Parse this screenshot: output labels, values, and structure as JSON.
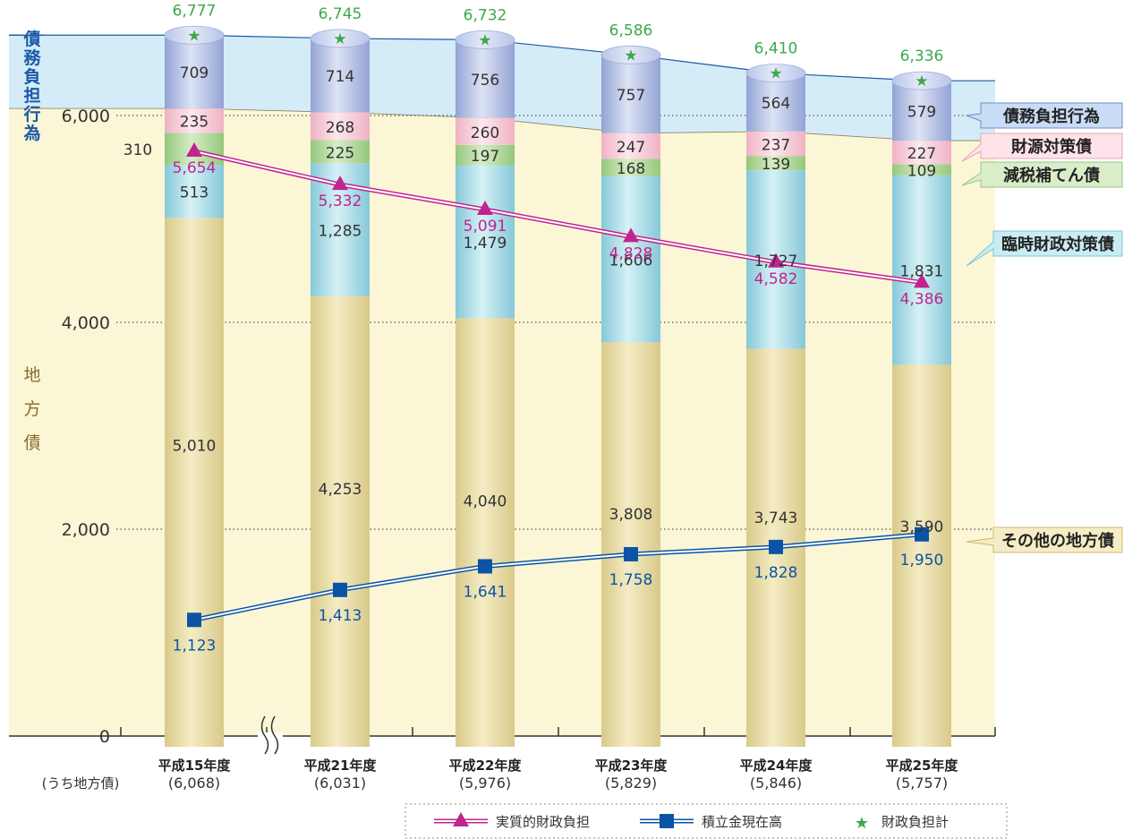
{
  "chart_data": {
    "type": "bar",
    "y_ticks": [
      "0",
      "2,000",
      "4,000",
      "6,000"
    ],
    "ylim": [
      0,
      7200
    ],
    "grid": "dotted",
    "side_label_top": "債務負担行為",
    "side_label_main": [
      "地",
      "方",
      "債"
    ],
    "categories": [
      "平成15年度",
      "平成21年度",
      "平成22年度",
      "平成23年度",
      "平成24年度",
      "平成25年度"
    ],
    "category_sub": [
      "(6,068)",
      "(6,031)",
      "(5,976)",
      "(5,829)",
      "(5,846)",
      "(5,757)"
    ],
    "sub_row_label": "(うち地方債)",
    "series": [
      {
        "name": "その他の地方債",
        "values": [
          5010,
          4253,
          4040,
          3808,
          3743,
          3590
        ],
        "labels": [
          "5,010",
          "4,253",
          "4,040",
          "3,808",
          "3,743",
          "3,590"
        ],
        "color": "#e8dca0"
      },
      {
        "name": "臨時財政対策債",
        "values": [
          513,
          1285,
          1479,
          1606,
          1727,
          1831
        ],
        "labels": [
          "513",
          "1,285",
          "1,479",
          "1,606",
          "1,727",
          "1,831"
        ],
        "color": "#a6dbe6"
      },
      {
        "name": "減税補てん債",
        "values": [
          310,
          225,
          197,
          168,
          139,
          109
        ],
        "labels": [
          "310",
          "225",
          "197",
          "168",
          "139",
          "109"
        ],
        "color": "#b9dba0"
      },
      {
        "name": "財源対策債",
        "values": [
          235,
          268,
          260,
          247,
          237,
          227
        ],
        "labels": [
          "235",
          "268",
          "260",
          "247",
          "237",
          "227"
        ],
        "color": "#f8cdd8"
      },
      {
        "name": "債務負担行為",
        "values": [
          709,
          714,
          756,
          757,
          564,
          579
        ],
        "labels": [
          "709",
          "714",
          "756",
          "757",
          "564",
          "579"
        ],
        "color": "#b7c2e6"
      }
    ],
    "totals": {
      "name": "財政負担計",
      "values": [
        6777,
        6745,
        6732,
        6586,
        6410,
        6336
      ],
      "labels": [
        "6,777",
        "6,745",
        "6,732",
        "6,586",
        "6,410",
        "6,336"
      ],
      "color": "#3aaa48"
    },
    "lines": [
      {
        "name": "実質的財政負担",
        "values": [
          5654,
          5332,
          5091,
          4828,
          4582,
          4386
        ],
        "labels": [
          "5,654",
          "5,332",
          "5,091",
          "4,828",
          "4,582",
          "4,386"
        ],
        "color": "#c0248e"
      },
      {
        "name": "積立金現在高",
        "values": [
          1123,
          1413,
          1641,
          1758,
          1828,
          1950
        ],
        "labels": [
          "1,123",
          "1,413",
          "1,641",
          "1,758",
          "1,828",
          "1,950"
        ],
        "color": "#0b54a5"
      }
    ],
    "right_labels": [
      "債務負担行為",
      "財源対策債",
      "減税補てん債",
      "臨時財政対策債",
      "その他の地方債"
    ],
    "legend": [
      "実質的財政負担",
      "積立金現在高",
      "財政負担計"
    ]
  }
}
